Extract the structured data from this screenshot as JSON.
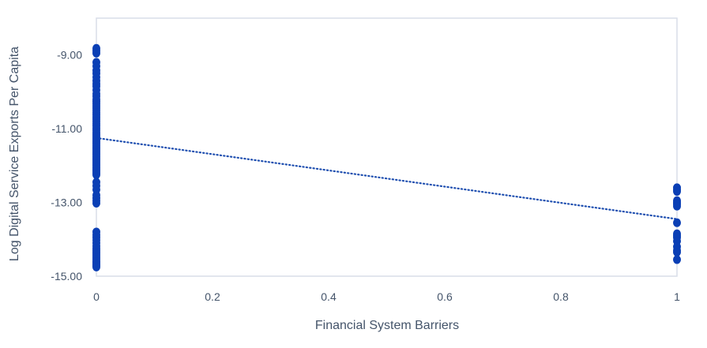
{
  "chart_data": {
    "type": "scatter",
    "title": "",
    "xlabel": "Financial System Barriers",
    "ylabel": "Log Digital Service Exports Per Capita",
    "xlim": [
      0,
      1
    ],
    "ylim": [
      -15,
      -8
    ],
    "x_ticks": [
      0,
      0.2,
      0.4,
      0.6,
      0.8,
      1
    ],
    "x_tick_labels": [
      "0",
      "0.2",
      "0.4",
      "0.6",
      "0.8",
      "1"
    ],
    "y_ticks": [
      -9,
      -11,
      -13,
      -15
    ],
    "y_tick_labels": [
      "-9.00",
      "-11.00",
      "-13.00",
      "-15.00"
    ],
    "grid": false,
    "legend": "none",
    "marker_color": "#0a3fb5",
    "trendline": {
      "style": "dotted",
      "color": "#1f4fb0",
      "x": [
        0,
        1
      ],
      "y": [
        -11.25,
        -13.45
      ]
    },
    "series": [
      {
        "x": [
          0,
          0,
          0,
          0,
          0,
          0,
          0,
          0,
          0,
          0,
          0,
          0,
          0,
          0,
          0,
          0,
          0,
          0,
          0,
          0,
          0,
          0,
          0,
          0,
          0,
          0,
          0,
          0,
          0,
          0,
          0,
          0,
          0,
          0,
          0,
          0,
          0,
          0,
          0,
          0,
          0,
          0,
          0,
          0,
          0,
          0,
          0,
          0,
          0,
          0,
          0,
          0,
          0,
          0,
          0,
          0,
          0,
          0,
          0,
          0,
          0,
          0,
          0,
          0,
          0,
          0,
          0,
          0,
          0,
          0,
          0,
          0,
          0,
          0,
          0,
          0,
          0,
          0,
          0,
          1,
          1,
          1,
          1,
          1,
          1,
          1,
          1,
          1,
          1,
          1,
          1,
          1,
          1,
          1,
          1
        ],
        "y": [
          -8.82,
          -8.88,
          -8.95,
          -9.2,
          -9.3,
          -9.42,
          -9.5,
          -9.6,
          -9.7,
          -9.78,
          -9.85,
          -9.95,
          -10.05,
          -10.12,
          -10.2,
          -10.26,
          -10.32,
          -10.38,
          -10.44,
          -10.5,
          -10.56,
          -10.62,
          -10.68,
          -10.74,
          -10.8,
          -10.86,
          -10.92,
          -10.98,
          -11.04,
          -11.1,
          -11.15,
          -11.2,
          -11.25,
          -11.3,
          -11.35,
          -11.4,
          -11.45,
          -11.5,
          -11.55,
          -11.6,
          -11.65,
          -11.7,
          -11.75,
          -11.8,
          -11.85,
          -11.9,
          -11.95,
          -12.0,
          -12.05,
          -12.1,
          -12.15,
          -12.2,
          -12.25,
          -12.45,
          -12.55,
          -12.65,
          -12.8,
          -12.88,
          -12.95,
          -13.02,
          -13.8,
          -13.88,
          -13.95,
          -14.02,
          -14.1,
          -14.18,
          -14.25,
          -14.3,
          -14.35,
          -14.4,
          -14.45,
          -14.5,
          -14.55,
          -14.6,
          -14.62,
          -14.66,
          -14.7,
          -14.72,
          -14.75,
          -12.6,
          -12.65,
          -12.7,
          -12.95,
          -13.0,
          -13.05,
          -13.1,
          -13.55,
          -13.85,
          -13.9,
          -13.95,
          -14.05,
          -14.2,
          -14.3,
          -14.35,
          -14.55
        ]
      }
    ]
  }
}
